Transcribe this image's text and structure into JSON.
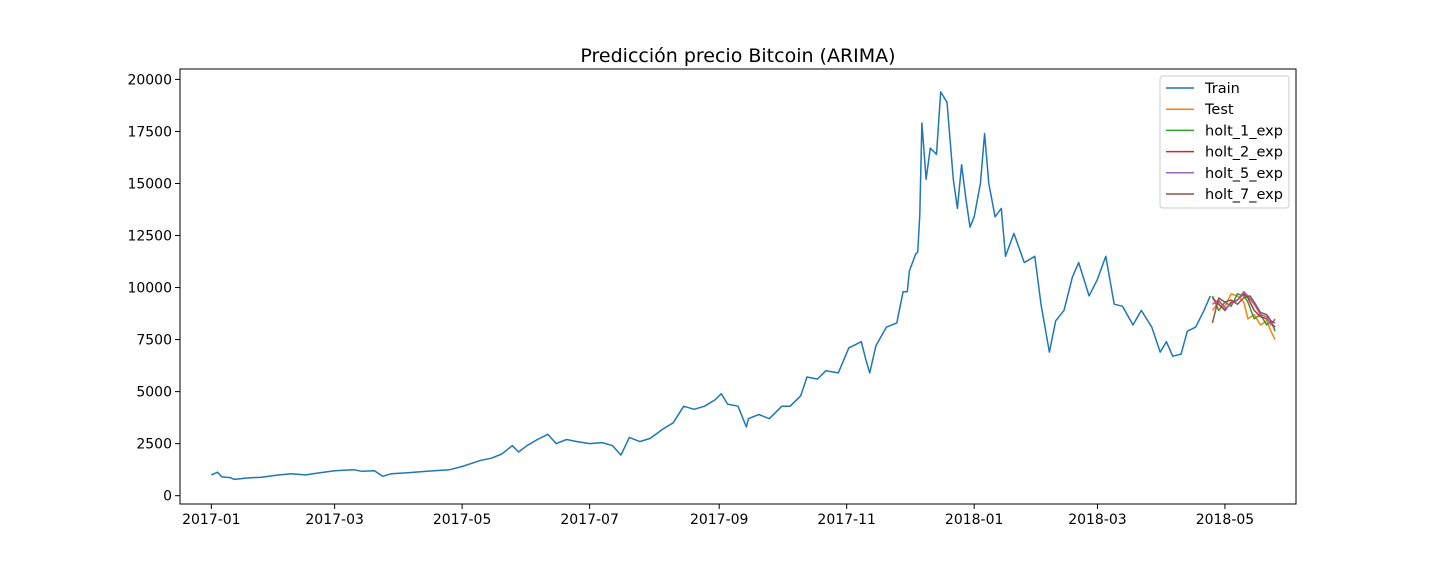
{
  "chart_data": {
    "type": "line",
    "title": "Predicción precio Bitcoin (ARIMA)",
    "xlabel": "",
    "ylabel": "",
    "x_range": [
      "2016-12-17",
      "2018-06-04"
    ],
    "ylim": [
      -400,
      20500
    ],
    "x_ticks": [
      "2017-01",
      "2017-03",
      "2017-05",
      "2017-07",
      "2017-09",
      "2017-11",
      "2018-01",
      "2018-03",
      "2018-05"
    ],
    "y_ticks": [
      0,
      2500,
      5000,
      7500,
      10000,
      12500,
      15000,
      17500,
      20000
    ],
    "grid": false,
    "legend_position": "top-right",
    "series": [
      {
        "name": "Train",
        "color": "#1f77b4",
        "points": [
          [
            "2017-01-01",
            1000
          ],
          [
            "2017-01-04",
            1130
          ],
          [
            "2017-01-06",
            900
          ],
          [
            "2017-01-10",
            870
          ],
          [
            "2017-01-12",
            780
          ],
          [
            "2017-01-18",
            850
          ],
          [
            "2017-01-25",
            890
          ],
          [
            "2017-02-01",
            980
          ],
          [
            "2017-02-08",
            1050
          ],
          [
            "2017-02-15",
            1000
          ],
          [
            "2017-02-22",
            1100
          ],
          [
            "2017-03-01",
            1200
          ],
          [
            "2017-03-10",
            1250
          ],
          [
            "2017-03-14",
            1170
          ],
          [
            "2017-03-20",
            1200
          ],
          [
            "2017-03-24",
            930
          ],
          [
            "2017-03-28",
            1050
          ],
          [
            "2017-04-05",
            1100
          ],
          [
            "2017-04-15",
            1180
          ],
          [
            "2017-04-25",
            1250
          ],
          [
            "2017-05-01",
            1400
          ],
          [
            "2017-05-10",
            1700
          ],
          [
            "2017-05-15",
            1800
          ],
          [
            "2017-05-20",
            2000
          ],
          [
            "2017-05-25",
            2400
          ],
          [
            "2017-05-28",
            2100
          ],
          [
            "2017-06-01",
            2400
          ],
          [
            "2017-06-06",
            2700
          ],
          [
            "2017-06-11",
            2950
          ],
          [
            "2017-06-15",
            2500
          ],
          [
            "2017-06-20",
            2700
          ],
          [
            "2017-06-25",
            2600
          ],
          [
            "2017-07-01",
            2500
          ],
          [
            "2017-07-07",
            2550
          ],
          [
            "2017-07-12",
            2400
          ],
          [
            "2017-07-16",
            1950
          ],
          [
            "2017-07-20",
            2800
          ],
          [
            "2017-07-25",
            2600
          ],
          [
            "2017-07-30",
            2750
          ],
          [
            "2017-08-05",
            3200
          ],
          [
            "2017-08-10",
            3500
          ],
          [
            "2017-08-15",
            4300
          ],
          [
            "2017-08-20",
            4150
          ],
          [
            "2017-08-25",
            4300
          ],
          [
            "2017-08-30",
            4600
          ],
          [
            "2017-09-02",
            4900
          ],
          [
            "2017-09-05",
            4400
          ],
          [
            "2017-09-10",
            4300
          ],
          [
            "2017-09-14",
            3300
          ],
          [
            "2017-09-15",
            3700
          ],
          [
            "2017-09-20",
            3900
          ],
          [
            "2017-09-25",
            3700
          ],
          [
            "2017-10-01",
            4300
          ],
          [
            "2017-10-05",
            4300
          ],
          [
            "2017-10-10",
            4800
          ],
          [
            "2017-10-13",
            5700
          ],
          [
            "2017-10-18",
            5600
          ],
          [
            "2017-10-22",
            6000
          ],
          [
            "2017-10-28",
            5900
          ],
          [
            "2017-11-02",
            7100
          ],
          [
            "2017-11-08",
            7400
          ],
          [
            "2017-11-10",
            6600
          ],
          [
            "2017-11-12",
            5900
          ],
          [
            "2017-11-15",
            7200
          ],
          [
            "2017-11-20",
            8100
          ],
          [
            "2017-11-25",
            8300
          ],
          [
            "2017-11-28",
            9800
          ],
          [
            "2017-11-30",
            9800
          ],
          [
            "2017-12-01",
            10800
          ],
          [
            "2017-12-04",
            11600
          ],
          [
            "2017-12-05",
            11700
          ],
          [
            "2017-12-06",
            13500
          ],
          [
            "2017-12-07",
            17900
          ],
          [
            "2017-12-09",
            15200
          ],
          [
            "2017-12-11",
            16700
          ],
          [
            "2017-12-14",
            16400
          ],
          [
            "2017-12-16",
            19400
          ],
          [
            "2017-12-19",
            18900
          ],
          [
            "2017-12-22",
            15200
          ],
          [
            "2017-12-24",
            13800
          ],
          [
            "2017-12-26",
            15900
          ],
          [
            "2017-12-28",
            14300
          ],
          [
            "2017-12-30",
            12900
          ],
          [
            "2018-01-01",
            13400
          ],
          [
            "2018-01-04",
            15000
          ],
          [
            "2018-01-06",
            17400
          ],
          [
            "2018-01-08",
            15000
          ],
          [
            "2018-01-11",
            13400
          ],
          [
            "2018-01-14",
            13800
          ],
          [
            "2018-01-16",
            11500
          ],
          [
            "2018-01-20",
            12600
          ],
          [
            "2018-01-25",
            11200
          ],
          [
            "2018-01-30",
            11500
          ],
          [
            "2018-02-02",
            9200
          ],
          [
            "2018-02-06",
            6900
          ],
          [
            "2018-02-09",
            8400
          ],
          [
            "2018-02-13",
            8900
          ],
          [
            "2018-02-17",
            10500
          ],
          [
            "2018-02-20",
            11200
          ],
          [
            "2018-02-25",
            9600
          ],
          [
            "2018-03-01",
            10400
          ],
          [
            "2018-03-05",
            11500
          ],
          [
            "2018-03-09",
            9200
          ],
          [
            "2018-03-13",
            9100
          ],
          [
            "2018-03-18",
            8200
          ],
          [
            "2018-03-22",
            8900
          ],
          [
            "2018-03-27",
            8100
          ],
          [
            "2018-03-31",
            6900
          ],
          [
            "2018-04-03",
            7400
          ],
          [
            "2018-04-06",
            6700
          ],
          [
            "2018-04-10",
            6800
          ],
          [
            "2018-04-13",
            7900
          ],
          [
            "2018-04-17",
            8100
          ],
          [
            "2018-04-21",
            8900
          ],
          [
            "2018-04-24",
            9600
          ]
        ]
      },
      {
        "name": "Test",
        "color": "#ff7f0e",
        "points": [
          [
            "2018-04-25",
            8900
          ],
          [
            "2018-04-28",
            9300
          ],
          [
            "2018-05-01",
            9100
          ],
          [
            "2018-05-04",
            9700
          ],
          [
            "2018-05-07",
            9600
          ],
          [
            "2018-05-10",
            9300
          ],
          [
            "2018-05-12",
            8500
          ],
          [
            "2018-05-15",
            8700
          ],
          [
            "2018-05-18",
            8200
          ],
          [
            "2018-05-21",
            8400
          ],
          [
            "2018-05-23",
            7900
          ],
          [
            "2018-05-25",
            7500
          ]
        ]
      },
      {
        "name": "holt_1_exp",
        "color": "#2ca02c",
        "points": [
          [
            "2018-04-25",
            9600
          ],
          [
            "2018-04-28",
            8900
          ],
          [
            "2018-05-01",
            9300
          ],
          [
            "2018-05-04",
            9100
          ],
          [
            "2018-05-07",
            9700
          ],
          [
            "2018-05-10",
            9600
          ],
          [
            "2018-05-12",
            9300
          ],
          [
            "2018-05-15",
            8500
          ],
          [
            "2018-05-18",
            8700
          ],
          [
            "2018-05-21",
            8200
          ],
          [
            "2018-05-23",
            8400
          ],
          [
            "2018-05-25",
            7900
          ]
        ]
      },
      {
        "name": "holt_2_exp",
        "color": "#d62728",
        "points": [
          [
            "2018-04-25",
            9500
          ],
          [
            "2018-04-28",
            9200
          ],
          [
            "2018-05-01",
            8900
          ],
          [
            "2018-05-04",
            9300
          ],
          [
            "2018-05-07",
            9400
          ],
          [
            "2018-05-10",
            9700
          ],
          [
            "2018-05-12",
            9500
          ],
          [
            "2018-05-15",
            8900
          ],
          [
            "2018-05-18",
            8600
          ],
          [
            "2018-05-21",
            8500
          ],
          [
            "2018-05-23",
            8300
          ],
          [
            "2018-05-25",
            8100
          ]
        ]
      },
      {
        "name": "holt_5_exp",
        "color": "#9467bd",
        "points": [
          [
            "2018-04-25",
            9200
          ],
          [
            "2018-04-28",
            9400
          ],
          [
            "2018-05-01",
            9000
          ],
          [
            "2018-05-04",
            9200
          ],
          [
            "2018-05-07",
            9400
          ],
          [
            "2018-05-10",
            9800
          ],
          [
            "2018-05-12",
            9600
          ],
          [
            "2018-05-15",
            9200
          ],
          [
            "2018-05-18",
            8700
          ],
          [
            "2018-05-21",
            8600
          ],
          [
            "2018-05-23",
            8200
          ],
          [
            "2018-05-25",
            8500
          ]
        ]
      },
      {
        "name": "holt_7_exp",
        "color": "#8c564b",
        "points": [
          [
            "2018-04-25",
            8300
          ],
          [
            "2018-04-28",
            9500
          ],
          [
            "2018-05-01",
            9300
          ],
          [
            "2018-05-04",
            9400
          ],
          [
            "2018-05-07",
            9200
          ],
          [
            "2018-05-10",
            9500
          ],
          [
            "2018-05-13",
            9600
          ],
          [
            "2018-05-15",
            9300
          ],
          [
            "2018-05-18",
            8800
          ],
          [
            "2018-05-21",
            8700
          ],
          [
            "2018-05-23",
            8400
          ],
          [
            "2018-05-25",
            8300
          ]
        ]
      }
    ]
  }
}
